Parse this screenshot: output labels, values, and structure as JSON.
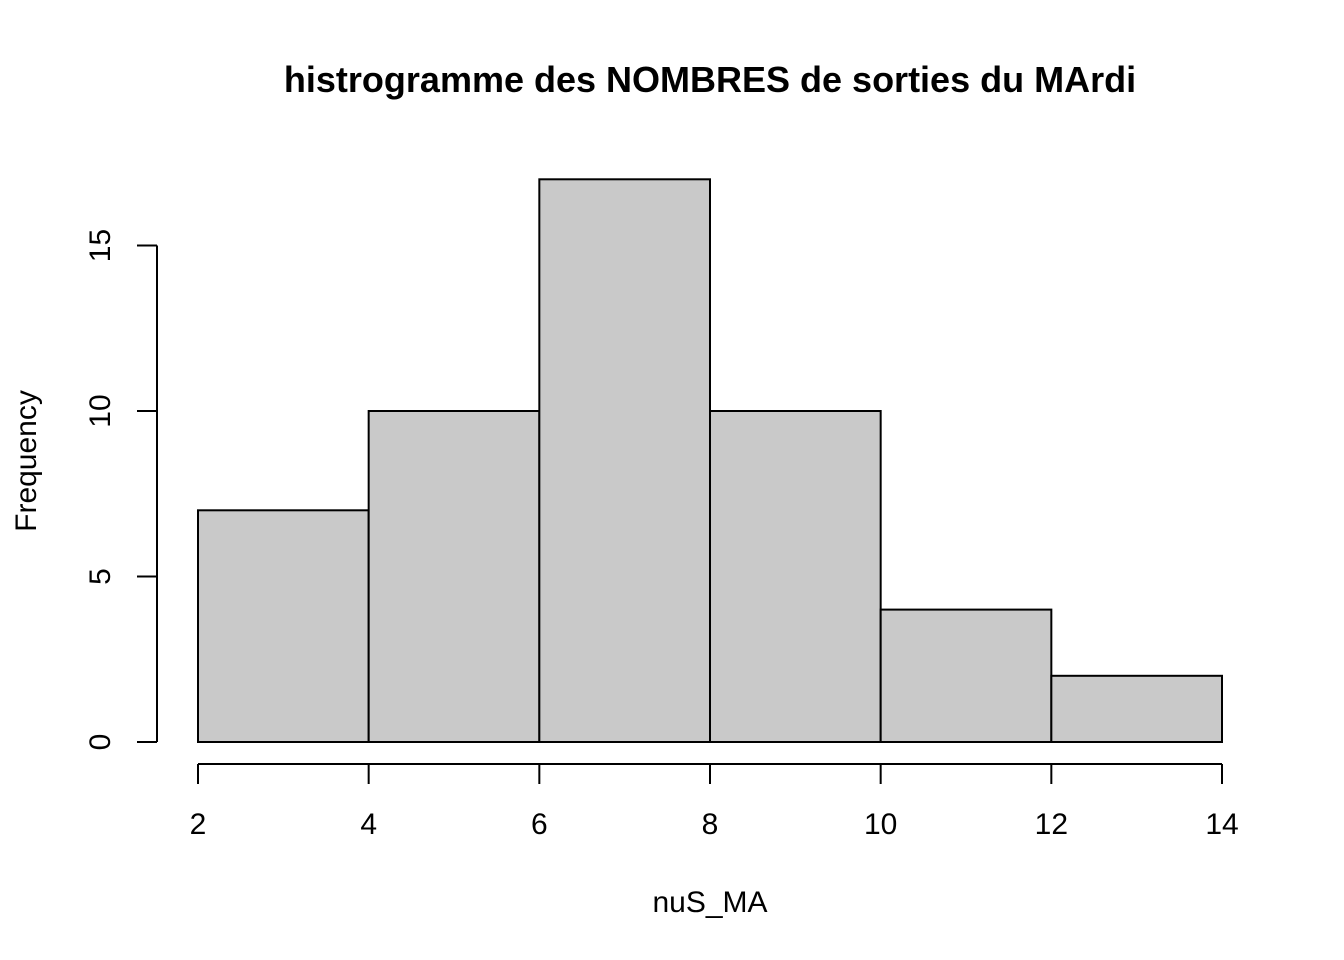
{
  "chart_data": {
    "type": "bar",
    "title": "histrogramme des NOMBRES de sorties du MArdi",
    "xlabel": "nuS_MA",
    "ylabel": "Frequency",
    "bins": [
      {
        "from": 2,
        "to": 4,
        "count": 7
      },
      {
        "from": 4,
        "to": 6,
        "count": 10
      },
      {
        "from": 6,
        "to": 8,
        "count": 17
      },
      {
        "from": 8,
        "to": 10,
        "count": 10
      },
      {
        "from": 10,
        "to": 12,
        "count": 4
      },
      {
        "from": 12,
        "to": 14,
        "count": 2
      }
    ],
    "xlim": [
      2,
      14
    ],
    "ylim": [
      0,
      17
    ],
    "x_ticks": [
      "2",
      "4",
      "6",
      "8",
      "10",
      "12",
      "14"
    ],
    "y_ticks": [
      "0",
      "5",
      "10",
      "15"
    ],
    "grid": false,
    "colors": {
      "bar_fill": "#c9c9c9",
      "bar_stroke": "#000000",
      "background": "#ffffff"
    }
  }
}
